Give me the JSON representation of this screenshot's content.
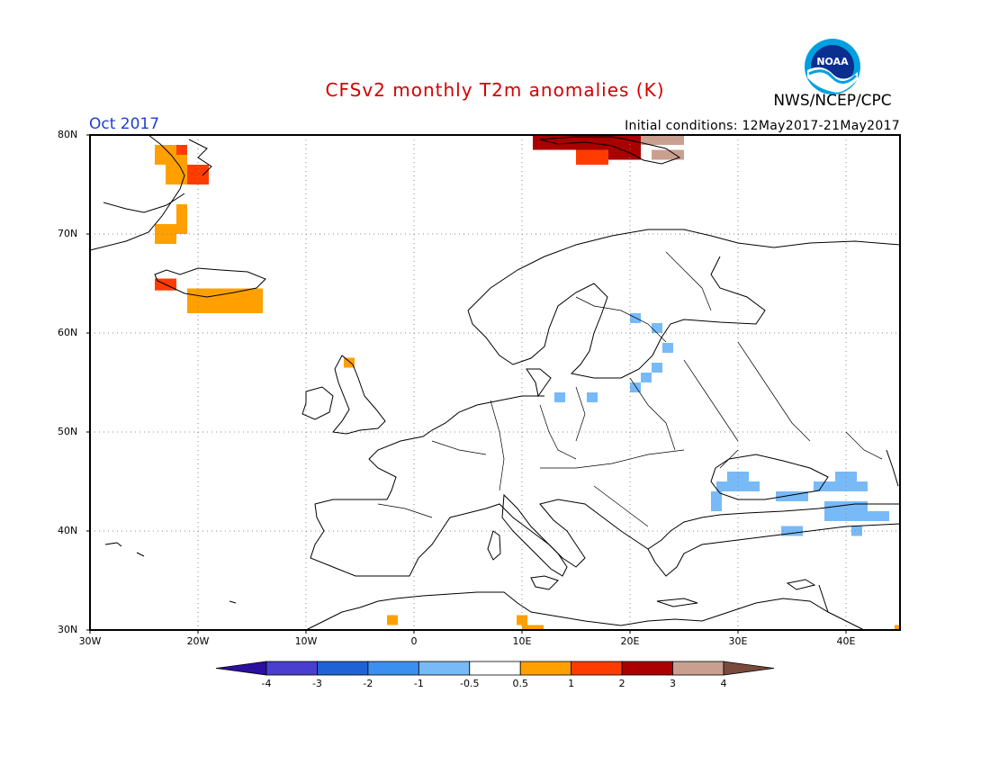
{
  "title": "CFSv2 monthly T2m anomalies (K)",
  "agency": "NWS/NCEP/CPC",
  "logo_text": "NOAA",
  "valid_month": "Oct 2017",
  "initial_conditions": "Initial conditions: 12May2017-21May2017",
  "colors": {
    "title": "#d40000",
    "valid_month": "#1f3fd0"
  },
  "map": {
    "lon_range": [
      -30,
      45
    ],
    "lat_range": [
      30,
      80
    ],
    "lat_ticks": [
      {
        "value": 80,
        "label": "80N"
      },
      {
        "value": 70,
        "label": "70N"
      },
      {
        "value": 60,
        "label": "60N"
      },
      {
        "value": 50,
        "label": "50N"
      },
      {
        "value": 40,
        "label": "40N"
      },
      {
        "value": 30,
        "label": "30N"
      }
    ],
    "lon_ticks": [
      {
        "value": -30,
        "label": "30W"
      },
      {
        "value": -20,
        "label": "20W"
      },
      {
        "value": -10,
        "label": "10W"
      },
      {
        "value": 0,
        "label": "0"
      },
      {
        "value": 10,
        "label": "10E"
      },
      {
        "value": 20,
        "label": "20E"
      },
      {
        "value": 30,
        "label": "30E"
      },
      {
        "value": 40,
        "label": "40E"
      }
    ],
    "anomaly_cells": [
      {
        "lon": -24,
        "lat": 79,
        "w": 3,
        "h": 2,
        "bin": "0.5-1"
      },
      {
        "lon": -23,
        "lat": 77,
        "w": 2,
        "h": 2,
        "bin": "0.5-1"
      },
      {
        "lon": -22,
        "lat": 79,
        "w": 1,
        "h": 1,
        "bin": "1-2"
      },
      {
        "lon": -21,
        "lat": 77,
        "w": 2,
        "h": 2,
        "bin": "1-2"
      },
      {
        "lon": -22,
        "lat": 73,
        "w": 1,
        "h": 2,
        "bin": "0.5-1"
      },
      {
        "lon": -24,
        "lat": 71,
        "w": 2,
        "h": 2,
        "bin": "0.5-1"
      },
      {
        "lon": -22,
        "lat": 71,
        "w": 1,
        "h": 1,
        "bin": "0.5-1"
      },
      {
        "lon": -24,
        "lat": 65.5,
        "w": 2,
        "h": 1.2,
        "bin": "1-2"
      },
      {
        "lon": -21,
        "lat": 64.5,
        "w": 7,
        "h": 2.5,
        "bin": "0.5-1"
      },
      {
        "lon": -20,
        "lat": 63.5,
        "w": 1,
        "h": 1,
        "bin": "0.5-1"
      },
      {
        "lon": 11,
        "lat": 80,
        "w": 4,
        "h": 1.5,
        "bin": "2-3"
      },
      {
        "lon": 15,
        "lat": 80,
        "w": 6,
        "h": 1.5,
        "bin": "2-3"
      },
      {
        "lon": 15,
        "lat": 78.5,
        "w": 3,
        "h": 1.5,
        "bin": "1-2"
      },
      {
        "lon": 18,
        "lat": 78.5,
        "w": 3,
        "h": 1,
        "bin": "2-3"
      },
      {
        "lon": 21,
        "lat": 80,
        "w": 4,
        "h": 1,
        "bin": "3-4"
      },
      {
        "lon": 22,
        "lat": 78.5,
        "w": 3,
        "h": 1,
        "bin": "3-4"
      },
      {
        "lon": -6.5,
        "lat": 57.5,
        "w": 1,
        "h": 1,
        "bin": "0.5-1"
      },
      {
        "lon": -2.5,
        "lat": 31.5,
        "w": 1,
        "h": 1,
        "bin": "0.5-1"
      },
      {
        "lon": 9.5,
        "lat": 31.5,
        "w": 1,
        "h": 1,
        "bin": "0.5-1"
      },
      {
        "lon": 10,
        "lat": 30.5,
        "w": 2,
        "h": 1,
        "bin": "0.5-1"
      },
      {
        "lon": 44.5,
        "lat": 30.5,
        "w": 0.5,
        "h": 1,
        "bin": "0.5-1"
      },
      {
        "lon": 20,
        "lat": 62,
        "w": 1,
        "h": 1,
        "bin": "-1--0.5"
      },
      {
        "lon": 22,
        "lat": 61,
        "w": 1,
        "h": 1,
        "bin": "-1--0.5"
      },
      {
        "lon": 23,
        "lat": 59,
        "w": 1,
        "h": 1,
        "bin": "-1--0.5"
      },
      {
        "lon": 22,
        "lat": 57,
        "w": 1,
        "h": 1,
        "bin": "-1--0.5"
      },
      {
        "lon": 21,
        "lat": 56,
        "w": 1,
        "h": 1,
        "bin": "-1--0.5"
      },
      {
        "lon": 20,
        "lat": 55,
        "w": 1,
        "h": 1,
        "bin": "-1--0.5"
      },
      {
        "lon": 13,
        "lat": 54,
        "w": 1,
        "h": 1,
        "bin": "-1--0.5"
      },
      {
        "lon": 16,
        "lat": 54,
        "w": 1,
        "h": 1,
        "bin": "-1--0.5"
      },
      {
        "lon": 29,
        "lat": 46,
        "w": 2,
        "h": 1,
        "bin": "-1--0.5"
      },
      {
        "lon": 28,
        "lat": 45,
        "w": 4,
        "h": 1,
        "bin": "-1--0.5"
      },
      {
        "lon": 27.5,
        "lat": 44,
        "w": 1,
        "h": 2,
        "bin": "-1--0.5"
      },
      {
        "lon": 33.5,
        "lat": 44,
        "w": 3,
        "h": 1,
        "bin": "-1--0.5"
      },
      {
        "lon": 39,
        "lat": 46,
        "w": 2,
        "h": 1,
        "bin": "-1--0.5"
      },
      {
        "lon": 37,
        "lat": 45,
        "w": 5,
        "h": 1,
        "bin": "-1--0.5"
      },
      {
        "lon": 38,
        "lat": 43,
        "w": 4,
        "h": 2,
        "bin": "-1--0.5"
      },
      {
        "lon": 41,
        "lat": 42,
        "w": 3,
        "h": 1,
        "bin": "-1--0.5"
      },
      {
        "lon": 34,
        "lat": 40.5,
        "w": 2,
        "h": 1,
        "bin": "-1--0.5"
      },
      {
        "lon": 40.5,
        "lat": 40.5,
        "w": 1,
        "h": 1,
        "bin": "-1--0.5"
      }
    ]
  },
  "colorbar": {
    "bins": [
      {
        "label": "",
        "color": "#2b0fa0"
      },
      {
        "label": "-4",
        "color": "#4a3ed0"
      },
      {
        "label": "-3",
        "color": "#1e62d6"
      },
      {
        "label": "-2",
        "color": "#3b8ff0"
      },
      {
        "label": "-1",
        "color": "#78baf7"
      },
      {
        "label": "-0.5",
        "color": "#ffffff"
      },
      {
        "label": "0.5",
        "color": "#ffa000"
      },
      {
        "label": "1",
        "color": "#ff3c00"
      },
      {
        "label": "2",
        "color": "#aa0000"
      },
      {
        "label": "3",
        "color": "#c9a08f"
      },
      {
        "label": "4",
        "color": "#7a4a3a"
      }
    ],
    "bin_colors": {
      "0.5-1": "#ffa000",
      "1-2": "#ff3c00",
      "2-3": "#aa0000",
      "3-4": "#c9a08f",
      "-1--0.5": "#78baf7"
    }
  }
}
